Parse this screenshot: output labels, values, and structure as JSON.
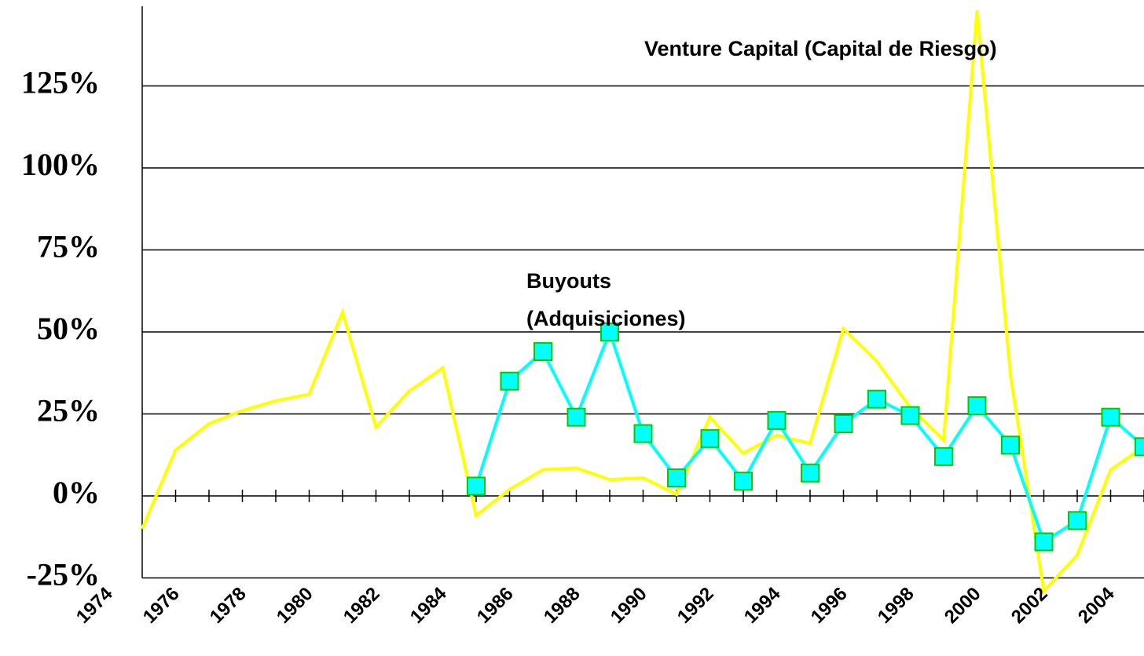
{
  "chart_data": {
    "type": "line",
    "categories": [
      "1974",
      null,
      "1976",
      null,
      "1978",
      null,
      "1980",
      null,
      "1982",
      null,
      "1984",
      null,
      "1986",
      null,
      "1988",
      null,
      "1990",
      null,
      "1992",
      null,
      "1994",
      null,
      "1996",
      null,
      "1998",
      null,
      "2000",
      null,
      "2002",
      null,
      "2004",
      null
    ],
    "series": [
      {
        "name": "Venture Capital (Capital de Riesgo)",
        "color": "#ffff00",
        "values": [
          null,
          -10,
          14,
          22,
          26,
          29,
          31,
          56,
          21,
          32,
          39,
          -6,
          2,
          8,
          8.5,
          5,
          5.5,
          0.5,
          24,
          13,
          18.5,
          16,
          51,
          41,
          27,
          17,
          148,
          37,
          -29,
          -18,
          8,
          15
        ]
      },
      {
        "name": "Buyouts (Adquisiciones)",
        "color": "#00ffff",
        "marker_edge": "#00cc00",
        "values": [
          null,
          null,
          null,
          null,
          null,
          null,
          null,
          null,
          null,
          null,
          null,
          3,
          35,
          44,
          24,
          50,
          19,
          5.5,
          17.5,
          4.5,
          23,
          7,
          22,
          29.5,
          24.5,
          12,
          27.5,
          15.5,
          -14,
          -7.5,
          24,
          15
        ]
      }
    ],
    "ylim": [
      -25,
      150
    ],
    "yticks": [
      {
        "value": -25,
        "label": "-25%"
      },
      {
        "value": 0,
        "label": "0%"
      },
      {
        "value": 25,
        "label": "25%"
      },
      {
        "value": 50,
        "label": "50%"
      },
      {
        "value": 75,
        "label": "75%"
      },
      {
        "value": 100,
        "label": "100%"
      },
      {
        "value": 125,
        "label": "125%"
      }
    ],
    "grid": true
  }
}
